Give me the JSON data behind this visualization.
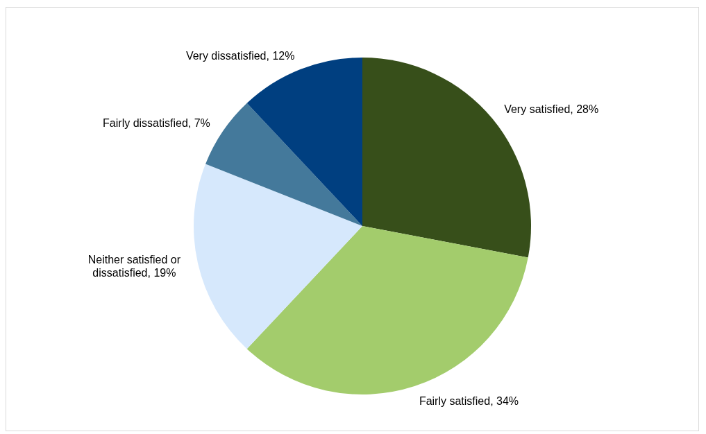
{
  "chart_data": {
    "type": "pie",
    "categories": [
      "Very satisfied",
      "Fairly satisfied",
      "Neither satisfied or dissatisfied",
      "Fairly dissatisfied",
      "Very dissatisfied"
    ],
    "values": [
      28,
      34,
      19,
      7,
      12
    ],
    "value_labels": [
      "28%",
      "34%",
      "19%",
      "7%",
      "12%"
    ],
    "colors": [
      "#374f1a",
      "#a3cc6c",
      "#d6e8fc",
      "#44799b",
      "#003f80"
    ]
  }
}
